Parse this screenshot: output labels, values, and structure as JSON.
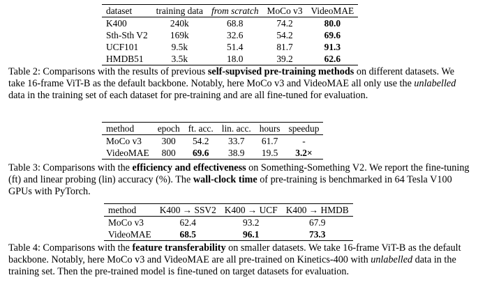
{
  "table2": {
    "headers": [
      "dataset",
      "training data",
      "from scratch",
      "MoCo v3",
      "VideoMAE"
    ],
    "rows": [
      [
        "K400",
        "240k",
        "68.8",
        "74.2",
        "80.0"
      ],
      [
        "Sth-Sth V2",
        "169k",
        "32.6",
        "54.2",
        "69.6"
      ],
      [
        "UCF101",
        "9.5k",
        "51.4",
        "81.7",
        "91.3"
      ],
      [
        "HMDB51",
        "3.5k",
        "18.0",
        "39.2",
        "62.6"
      ]
    ],
    "caption": {
      "label": "Table 2: Comparisons with the results of previous ",
      "bold": "self-supvised pre-training methods",
      "mid1": " on different datasets. We take 16-frame ViT-B as the default backbone. Notably, here MoCo v3 and VideoMAE all only use the ",
      "italic": "unlabelled",
      "end": " data in the training set of each dataset for pre-training and are all fine-tuned for evaluation."
    }
  },
  "table3": {
    "headers": [
      "method",
      "epoch",
      "ft. acc.",
      "lin. acc.",
      "hours",
      "speedup"
    ],
    "rows": [
      [
        "MoCo v3",
        "300",
        "54.2",
        "33.7",
        "61.7",
        "-"
      ],
      [
        "VideoMAE",
        "800",
        "69.6",
        "38.9",
        "19.5",
        "3.2×"
      ]
    ],
    "caption": {
      "label": "Table 3: Comparisons with the ",
      "bold1": "efficiency and effectiveness",
      "mid1": " on Something-Something V2. We report the fine-tuning (ft) and linear probing (lin) accuracy (%). The ",
      "bold2": "wall-clock time",
      "end": " of pre-training is benchmarked in 64 Tesla V100 GPUs with PyTorch."
    }
  },
  "table4": {
    "headers": [
      "method",
      "K400 → SSV2",
      "K400 → UCF",
      "K400 → HMDB"
    ],
    "rows": [
      [
        "MoCo v3",
        "62.4",
        "93.2",
        "67.9"
      ],
      [
        "VideoMAE",
        "68.5",
        "96.1",
        "73.3"
      ]
    ],
    "caption": {
      "label": "Table 4: Comparisons with the ",
      "bold": "feature transferability",
      "mid1": " on smaller datasets. We take 16-frame ViT-B as the default backbone. Notably, here MoCo v3 and VideoMAE are all pre-trained on Kinetics-400 with ",
      "italic": "unlabelled",
      "end": " data in the training set. Then the pre-trained model is fine-tuned on target datasets for evaluation."
    }
  }
}
